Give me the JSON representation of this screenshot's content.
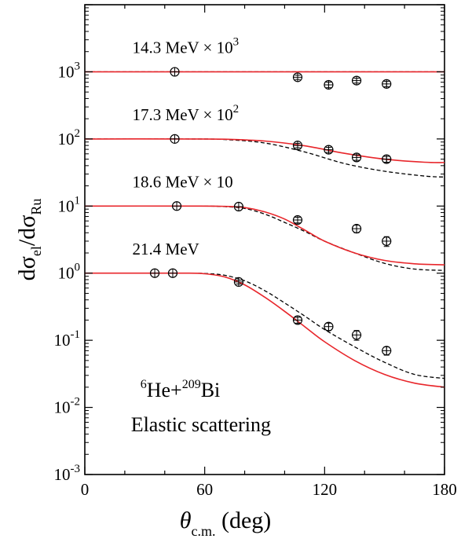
{
  "chart_data": {
    "type": "scatter",
    "xlabel": {
      "main": "θ",
      "sub": "c.m.",
      "unit": "(deg)"
    },
    "ylabel": {
      "d1": "dσ",
      "sub1": "el",
      "slash": "/dσ",
      "sub2": "Ru"
    },
    "xlim": [
      0,
      180
    ],
    "ylim": [
      0.001,
      10000
    ],
    "yscale": "log",
    "grid": false,
    "x_ticks": [
      {
        "value": 0,
        "label": "0"
      },
      {
        "value": 60,
        "label": "60"
      },
      {
        "value": 120,
        "label": "120"
      },
      {
        "value": 180,
        "label": "180"
      }
    ],
    "y_ticks": [
      {
        "value": 0.001,
        "base": "10",
        "exp": "-3"
      },
      {
        "value": 0.01,
        "base": "10",
        "exp": "-2"
      },
      {
        "value": 0.1,
        "base": "10",
        "exp": "-1"
      },
      {
        "value": 1,
        "base": "10",
        "exp": "0"
      },
      {
        "value": 10,
        "base": "10",
        "exp": "1"
      },
      {
        "value": 100,
        "base": "10",
        "exp": "2"
      },
      {
        "value": 1000,
        "base": "10",
        "exp": "3"
      }
    ],
    "series": [
      {
        "label": "14.3 MeV × 10³",
        "label_parts": {
          "text": "14.3 MeV × 10",
          "sup": "3"
        },
        "label_pos": {
          "x": 12,
          "y": 1900
        },
        "points": [
          {
            "x": 45,
            "y": 1000,
            "err": 0
          },
          {
            "x": 106.5,
            "y": 830,
            "err": 60
          },
          {
            "x": 122,
            "y": 640,
            "err": 60
          },
          {
            "x": 136,
            "y": 740,
            "err": 60
          },
          {
            "x": 151,
            "y": 660,
            "err": 60
          }
        ],
        "red_curve": [
          [
            0,
            1000
          ],
          [
            60,
            1000
          ],
          [
            90,
            1000
          ],
          [
            120,
            1000
          ],
          [
            180,
            1000
          ]
        ],
        "dashed_curve": [
          [
            0,
            1000
          ],
          [
            60,
            1000
          ],
          [
            90,
            1000
          ],
          [
            120,
            1000
          ],
          [
            180,
            1000
          ]
        ]
      },
      {
        "label": "17.3 MeV × 10²",
        "label_parts": {
          "text": "17.3 MeV × 10",
          "sup": "2"
        },
        "label_pos": {
          "x": 12,
          "y": 190
        },
        "points": [
          {
            "x": 45,
            "y": 100,
            "err": 0
          },
          {
            "x": 106.5,
            "y": 80,
            "err": 6
          },
          {
            "x": 122,
            "y": 69,
            "err": 6
          },
          {
            "x": 136,
            "y": 53,
            "err": 5
          },
          {
            "x": 151,
            "y": 50,
            "err": 5
          }
        ],
        "red_curve": [
          [
            0,
            100
          ],
          [
            50,
            100
          ],
          [
            70,
            99
          ],
          [
            90,
            93
          ],
          [
            110,
            79
          ],
          [
            130,
            61
          ],
          [
            150,
            50
          ],
          [
            170,
            45
          ],
          [
            180,
            44.5
          ]
        ],
        "dashed_curve": [
          [
            0,
            100
          ],
          [
            50,
            100
          ],
          [
            70,
            98
          ],
          [
            90,
            87
          ],
          [
            110,
            64
          ],
          [
            130,
            43
          ],
          [
            150,
            33
          ],
          [
            170,
            28
          ],
          [
            180,
            27
          ]
        ]
      },
      {
        "label": "18.6 MeV × 10",
        "label_parts": {
          "text": "18.6 MeV  × 10",
          "sup": ""
        },
        "label_pos": {
          "x": 12,
          "y": 19
        },
        "points": [
          {
            "x": 46,
            "y": 10,
            "err": 0
          },
          {
            "x": 77,
            "y": 9.8,
            "err": 0
          },
          {
            "x": 106.5,
            "y": 6.2,
            "err": 0.6
          },
          {
            "x": 136,
            "y": 4.6,
            "err": 0.6
          },
          {
            "x": 151,
            "y": 3.0,
            "err": 0.5
          }
        ],
        "red_curve": [
          [
            0,
            10
          ],
          [
            55,
            10
          ],
          [
            70,
            9.9
          ],
          [
            80,
            9.5
          ],
          [
            90,
            8.2
          ],
          [
            100,
            6.4
          ],
          [
            110,
            4.4
          ],
          [
            120,
            3.0
          ],
          [
            135,
            2.0
          ],
          [
            150,
            1.55
          ],
          [
            165,
            1.38
          ],
          [
            180,
            1.33
          ]
        ],
        "dashed_curve": [
          [
            0,
            10
          ],
          [
            55,
            10
          ],
          [
            70,
            9.8
          ],
          [
            80,
            9.2
          ],
          [
            90,
            7.6
          ],
          [
            100,
            5.7
          ],
          [
            110,
            4.2
          ],
          [
            120,
            3.0
          ],
          [
            135,
            2.0
          ],
          [
            150,
            1.4
          ],
          [
            165,
            1.15
          ],
          [
            180,
            1.1
          ]
        ]
      },
      {
        "label": "21.4 MeV",
        "label_parts": {
          "text": "21.4 MeV",
          "sup": ""
        },
        "label_pos": {
          "x": 12,
          "y": 1.9
        },
        "points": [
          {
            "x": 35,
            "y": 1.0,
            "err": 0
          },
          {
            "x": 44,
            "y": 1.0,
            "err": 0
          },
          {
            "x": 77,
            "y": 0.74,
            "err": 0.05
          },
          {
            "x": 106.5,
            "y": 0.2,
            "err": 0.02
          },
          {
            "x": 122,
            "y": 0.16,
            "err": 0.02
          },
          {
            "x": 136,
            "y": 0.12,
            "err": 0.02
          },
          {
            "x": 151,
            "y": 0.07,
            "err": 0.01
          }
        ],
        "red_curve": [
          [
            0,
            1
          ],
          [
            50,
            1
          ],
          [
            60,
            0.98
          ],
          [
            70,
            0.88
          ],
          [
            80,
            0.67
          ],
          [
            90,
            0.44
          ],
          [
            100,
            0.27
          ],
          [
            110,
            0.16
          ],
          [
            120,
            0.095
          ],
          [
            135,
            0.05
          ],
          [
            150,
            0.031
          ],
          [
            165,
            0.023
          ],
          [
            180,
            0.02
          ]
        ],
        "dashed_curve": [
          [
            0,
            1
          ],
          [
            50,
            1
          ],
          [
            60,
            0.99
          ],
          [
            70,
            0.93
          ],
          [
            80,
            0.77
          ],
          [
            90,
            0.55
          ],
          [
            100,
            0.36
          ],
          [
            110,
            0.23
          ],
          [
            120,
            0.145
          ],
          [
            135,
            0.08
          ],
          [
            150,
            0.047
          ],
          [
            165,
            0.031
          ],
          [
            180,
            0.027
          ]
        ]
      }
    ],
    "annotation": {
      "line1": {
        "sup1": "6",
        "p1": "He+",
        "sup2": "209",
        "p2": "Bi"
      },
      "line2": "Elastic scattering",
      "pos_line1": {
        "x": 16,
        "y": 0.0145
      },
      "pos_line2": {
        "x": 16,
        "y": 0.0052
      }
    },
    "colors": {
      "theory": "#e8262b",
      "alt": "#000000",
      "points": "#000000"
    }
  }
}
